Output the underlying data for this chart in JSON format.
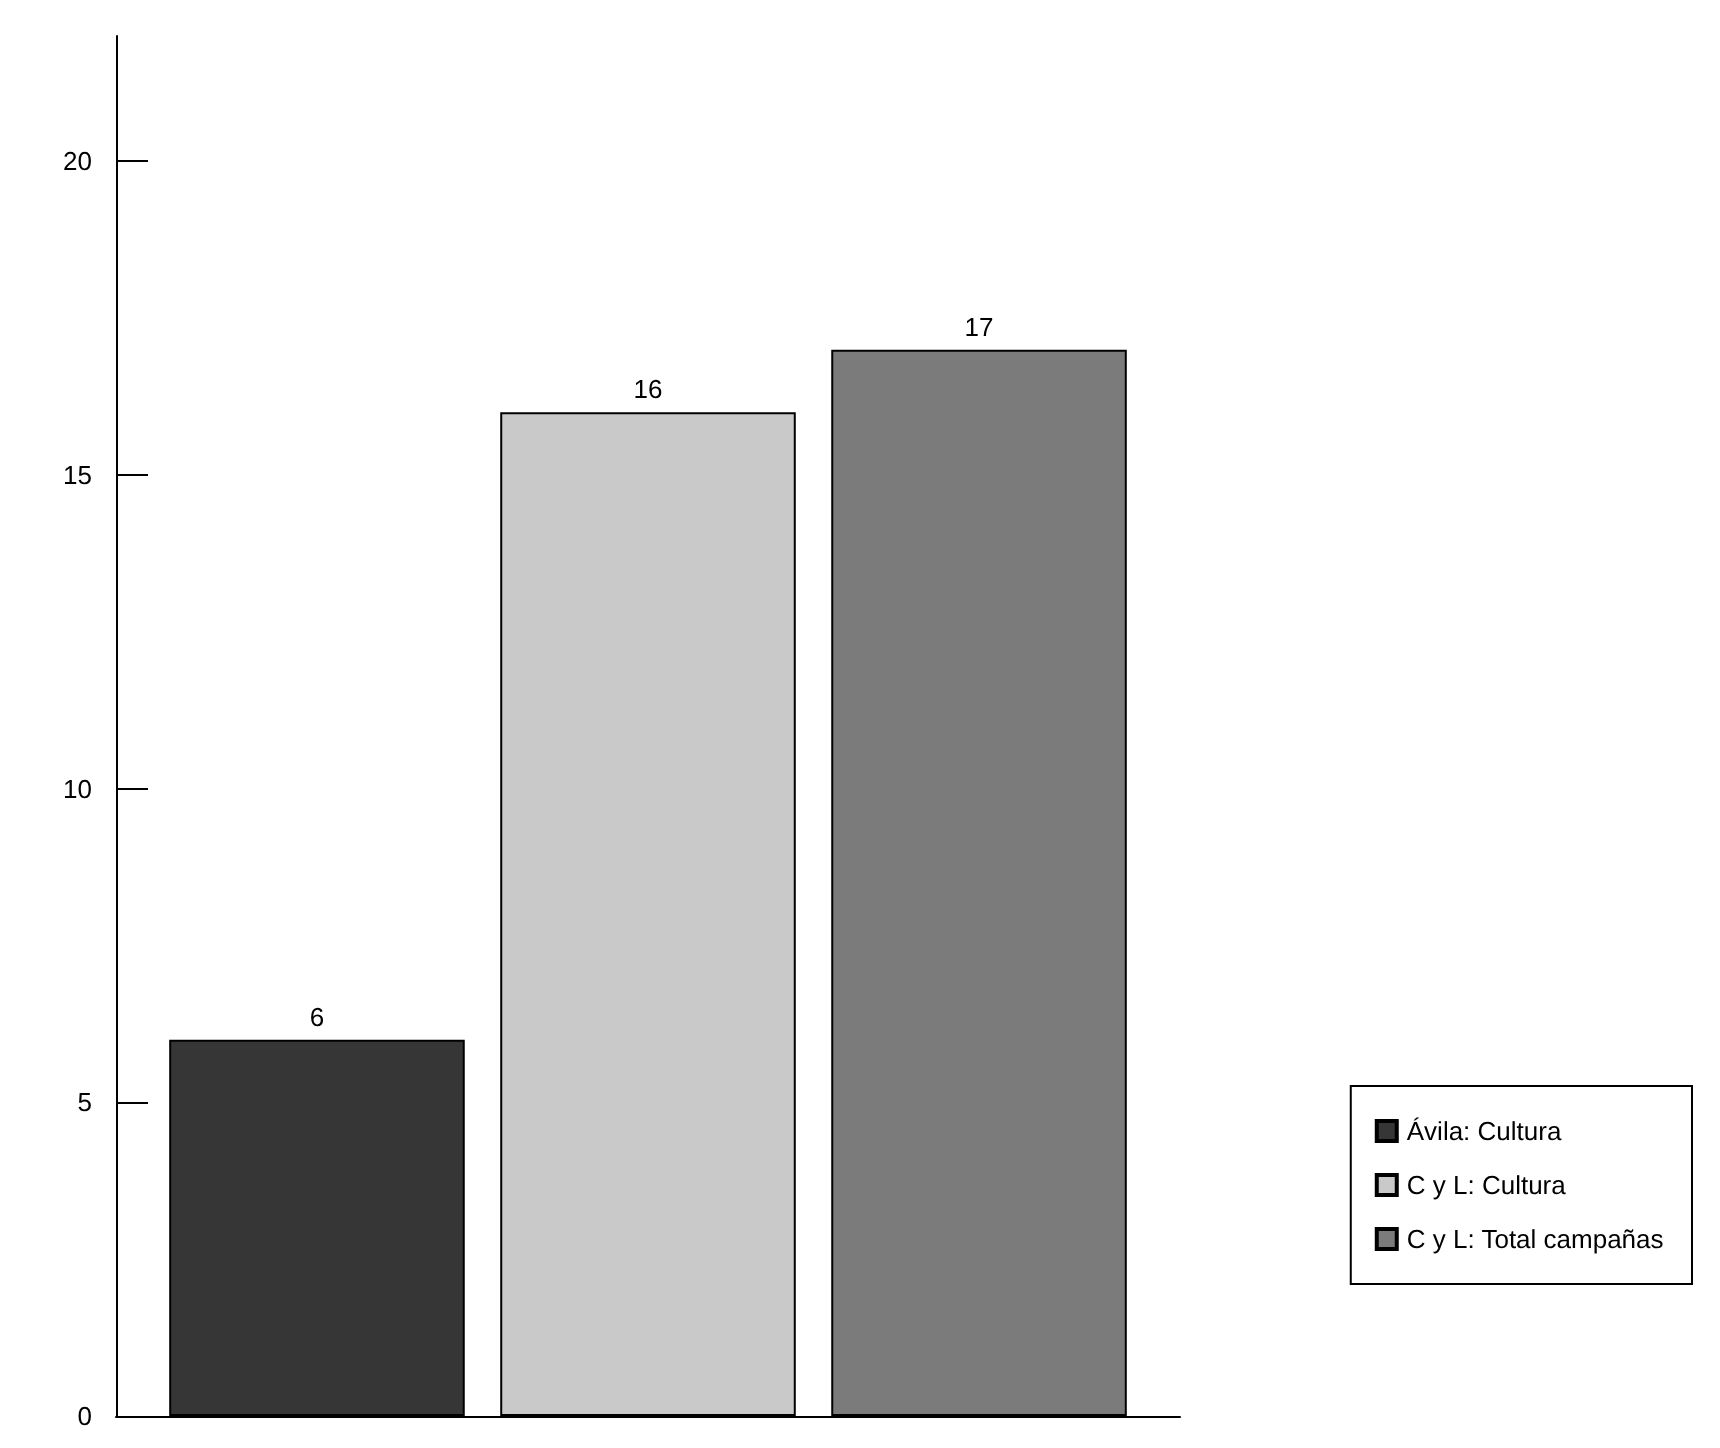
{
  "chart_data": {
    "type": "bar",
    "categories": [
      null
    ],
    "series": [
      {
        "name": "Ávila: Cultura",
        "color": "#363636",
        "values": [
          6
        ]
      },
      {
        "name": "C y L: Cultura",
        "color": "#c9c9c9",
        "values": [
          16
        ]
      },
      {
        "name": "C y L: Total campañas",
        "color": "#7b7b7b",
        "values": [
          17
        ]
      }
    ],
    "ylim": [
      0,
      22
    ],
    "yticks": [
      0,
      5,
      10,
      15,
      20
    ],
    "data_labels": true,
    "legend": "right",
    "grid": false
  }
}
